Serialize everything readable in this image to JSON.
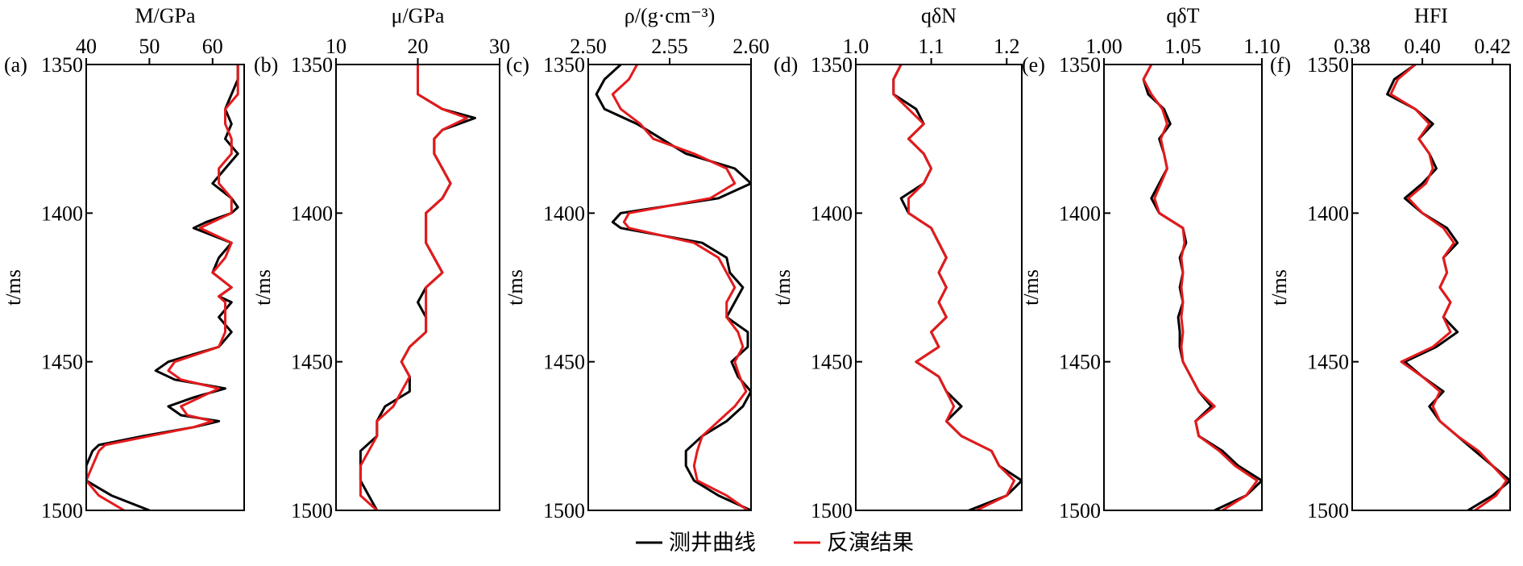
{
  "legend": [
    {
      "label": "测井曲线",
      "color": "#000000"
    },
    {
      "label": "反演结果",
      "color": "#e41a1c"
    }
  ],
  "y_axis": {
    "label": "t/ms",
    "range": [
      1350,
      1500
    ],
    "ticks": [
      1350,
      1400,
      1450,
      1500
    ]
  },
  "chart_data": [
    {
      "type": "line",
      "panel": "(a)",
      "title": "M/GPa",
      "xlim": [
        40,
        65
      ],
      "x_ticks": [
        40,
        50,
        60
      ],
      "y_reversed": true,
      "series": [
        {
          "name": "测井曲线",
          "color": "#000000",
          "t": [
            1350,
            1355,
            1360,
            1365,
            1370,
            1375,
            1380,
            1385,
            1390,
            1395,
            1398,
            1400,
            1403,
            1405,
            1410,
            1415,
            1420,
            1425,
            1428,
            1430,
            1435,
            1440,
            1445,
            1450,
            1453,
            1456,
            1459,
            1462,
            1465,
            1468,
            1470,
            1472,
            1475,
            1478,
            1480,
            1485,
            1490,
            1495,
            1500
          ],
          "values": [
            64,
            64,
            63,
            62,
            63,
            62,
            64,
            62,
            60,
            63,
            64,
            63,
            59,
            57,
            63,
            61,
            60,
            63,
            61,
            63,
            61,
            63,
            61,
            53,
            51,
            54,
            62,
            57,
            53,
            55,
            61,
            57,
            49,
            42,
            41,
            40,
            40,
            44,
            50
          ]
        },
        {
          "name": "反演结果",
          "color": "#e41a1c",
          "t": [
            1350,
            1355,
            1360,
            1365,
            1370,
            1375,
            1380,
            1385,
            1390,
            1395,
            1398,
            1400,
            1403,
            1405,
            1410,
            1415,
            1420,
            1425,
            1428,
            1430,
            1435,
            1440,
            1445,
            1450,
            1453,
            1456,
            1459,
            1462,
            1465,
            1468,
            1470,
            1472,
            1475,
            1478,
            1480,
            1485,
            1490,
            1495,
            1500
          ],
          "values": [
            64,
            64,
            64,
            62,
            62,
            63,
            63,
            61,
            61,
            63,
            63,
            63,
            60,
            58,
            63,
            62,
            60,
            63,
            61,
            62,
            62,
            62,
            61,
            54,
            53,
            55,
            61,
            58,
            55,
            56,
            60,
            57,
            50,
            43,
            42,
            41,
            40,
            42,
            46
          ]
        }
      ]
    },
    {
      "type": "line",
      "panel": "(b)",
      "title": "μ/GPa",
      "xlim": [
        10,
        30
      ],
      "x_ticks": [
        10,
        20,
        30
      ],
      "y_reversed": true,
      "series": [
        {
          "name": "测井曲线",
          "color": "#000000",
          "t": [
            1350,
            1355,
            1360,
            1365,
            1368,
            1372,
            1375,
            1380,
            1385,
            1390,
            1395,
            1400,
            1405,
            1410,
            1415,
            1420,
            1425,
            1430,
            1435,
            1440,
            1445,
            1450,
            1455,
            1460,
            1465,
            1470,
            1475,
            1480,
            1485,
            1490,
            1495,
            1500
          ],
          "values": [
            20,
            20,
            20,
            23,
            27,
            23,
            22,
            22,
            23,
            24,
            23,
            21,
            21,
            21,
            22,
            23,
            21,
            20,
            21,
            21,
            19,
            18,
            19,
            19,
            16,
            15,
            15,
            13,
            13,
            13,
            14,
            15
          ]
        },
        {
          "name": "反演结果",
          "color": "#e41a1c",
          "t": [
            1350,
            1355,
            1360,
            1365,
            1368,
            1372,
            1375,
            1380,
            1385,
            1390,
            1395,
            1400,
            1405,
            1410,
            1415,
            1420,
            1425,
            1430,
            1435,
            1440,
            1445,
            1450,
            1455,
            1460,
            1465,
            1470,
            1475,
            1480,
            1485,
            1490,
            1495,
            1500
          ],
          "values": [
            20,
            20,
            20,
            23,
            26,
            23,
            22,
            22,
            23,
            24,
            23,
            21,
            21,
            21,
            22,
            23,
            21,
            21,
            21,
            21,
            19,
            18,
            19,
            18,
            17,
            15,
            15,
            14,
            13,
            13,
            13,
            15
          ]
        }
      ]
    },
    {
      "type": "line",
      "panel": "(c)",
      "title": "ρ/(g·cm⁻³)",
      "xlim": [
        2.5,
        2.6
      ],
      "x_ticks": [
        2.5,
        2.55,
        2.6
      ],
      "y_reversed": true,
      "series": [
        {
          "name": "测井曲线",
          "color": "#000000",
          "t": [
            1350,
            1355,
            1360,
            1365,
            1370,
            1375,
            1380,
            1385,
            1390,
            1395,
            1400,
            1403,
            1405,
            1410,
            1415,
            1420,
            1425,
            1430,
            1435,
            1440,
            1445,
            1450,
            1455,
            1460,
            1465,
            1470,
            1475,
            1480,
            1485,
            1490,
            1495,
            1500
          ],
          "values": [
            2.52,
            2.51,
            2.505,
            2.51,
            2.53,
            2.545,
            2.56,
            2.59,
            2.6,
            2.58,
            2.52,
            2.515,
            2.52,
            2.57,
            2.585,
            2.587,
            2.595,
            2.59,
            2.585,
            2.598,
            2.598,
            2.588,
            2.592,
            2.6,
            2.595,
            2.585,
            2.57,
            2.56,
            2.56,
            2.565,
            2.58,
            2.6
          ]
        },
        {
          "name": "反演结果",
          "color": "#e41a1c",
          "t": [
            1350,
            1355,
            1360,
            1365,
            1370,
            1375,
            1380,
            1385,
            1390,
            1395,
            1400,
            1403,
            1405,
            1410,
            1415,
            1420,
            1425,
            1430,
            1435,
            1440,
            1445,
            1450,
            1455,
            1460,
            1465,
            1470,
            1475,
            1480,
            1485,
            1490,
            1495,
            1500
          ],
          "values": [
            2.53,
            2.525,
            2.515,
            2.52,
            2.532,
            2.54,
            2.565,
            2.585,
            2.59,
            2.575,
            2.525,
            2.522,
            2.525,
            2.565,
            2.58,
            2.585,
            2.59,
            2.585,
            2.585,
            2.592,
            2.595,
            2.59,
            2.593,
            2.597,
            2.59,
            2.58,
            2.57,
            2.567,
            2.565,
            2.567,
            2.585,
            2.598
          ]
        }
      ]
    },
    {
      "type": "line",
      "panel": "(d)",
      "title": "qδN",
      "xlim": [
        1.0,
        1.22
      ],
      "x_ticks": [
        1.0,
        1.1,
        1.2
      ],
      "y_reversed": true,
      "series": [
        {
          "name": "测井曲线",
          "color": "#000000",
          "t": [
            1350,
            1355,
            1360,
            1365,
            1370,
            1375,
            1380,
            1385,
            1390,
            1395,
            1400,
            1405,
            1410,
            1415,
            1420,
            1425,
            1430,
            1435,
            1440,
            1445,
            1450,
            1455,
            1460,
            1465,
            1470,
            1475,
            1480,
            1485,
            1490,
            1495,
            1500
          ],
          "values": [
            1.06,
            1.05,
            1.05,
            1.08,
            1.09,
            1.07,
            1.09,
            1.1,
            1.09,
            1.06,
            1.07,
            1.1,
            1.11,
            1.12,
            1.11,
            1.12,
            1.11,
            1.12,
            1.1,
            1.11,
            1.08,
            1.11,
            1.12,
            1.14,
            1.12,
            1.14,
            1.18,
            1.19,
            1.22,
            1.2,
            1.15
          ]
        },
        {
          "name": "反演结果",
          "color": "#e41a1c",
          "t": [
            1350,
            1355,
            1360,
            1365,
            1370,
            1375,
            1380,
            1385,
            1390,
            1395,
            1400,
            1405,
            1410,
            1415,
            1420,
            1425,
            1430,
            1435,
            1440,
            1445,
            1450,
            1455,
            1460,
            1465,
            1470,
            1475,
            1480,
            1485,
            1490,
            1495,
            1500
          ],
          "values": [
            1.06,
            1.05,
            1.05,
            1.07,
            1.09,
            1.07,
            1.09,
            1.1,
            1.09,
            1.07,
            1.07,
            1.1,
            1.11,
            1.12,
            1.11,
            1.12,
            1.11,
            1.12,
            1.1,
            1.11,
            1.08,
            1.11,
            1.12,
            1.13,
            1.12,
            1.14,
            1.18,
            1.19,
            1.21,
            1.2,
            1.16
          ]
        }
      ]
    },
    {
      "type": "line",
      "panel": "(e)",
      "title": "qδT",
      "xlim": [
        1.0,
        1.1
      ],
      "x_ticks": [
        1.0,
        1.05,
        1.1
      ],
      "y_reversed": true,
      "series": [
        {
          "name": "测井曲线",
          "color": "#000000",
          "t": [
            1350,
            1355,
            1360,
            1365,
            1370,
            1375,
            1380,
            1385,
            1390,
            1395,
            1400,
            1405,
            1410,
            1415,
            1420,
            1425,
            1430,
            1435,
            1440,
            1445,
            1450,
            1455,
            1460,
            1465,
            1470,
            1475,
            1480,
            1485,
            1490,
            1495,
            1500
          ],
          "values": [
            1.03,
            1.025,
            1.028,
            1.038,
            1.042,
            1.035,
            1.038,
            1.04,
            1.035,
            1.03,
            1.035,
            1.05,
            1.052,
            1.048,
            1.05,
            1.048,
            1.05,
            1.047,
            1.048,
            1.048,
            1.05,
            1.055,
            1.06,
            1.068,
            1.058,
            1.06,
            1.075,
            1.085,
            1.1,
            1.09,
            1.07
          ]
        },
        {
          "name": "反演结果",
          "color": "#e41a1c",
          "t": [
            1350,
            1355,
            1360,
            1365,
            1370,
            1375,
            1380,
            1385,
            1390,
            1395,
            1400,
            1405,
            1410,
            1415,
            1420,
            1425,
            1430,
            1435,
            1440,
            1445,
            1450,
            1455,
            1460,
            1465,
            1470,
            1475,
            1480,
            1485,
            1490,
            1495,
            1500
          ],
          "values": [
            1.03,
            1.025,
            1.03,
            1.037,
            1.04,
            1.036,
            1.038,
            1.04,
            1.036,
            1.032,
            1.035,
            1.05,
            1.051,
            1.049,
            1.05,
            1.049,
            1.05,
            1.049,
            1.05,
            1.049,
            1.05,
            1.055,
            1.06,
            1.07,
            1.058,
            1.06,
            1.073,
            1.083,
            1.097,
            1.09,
            1.075
          ]
        }
      ]
    },
    {
      "type": "line",
      "panel": "(f)",
      "title": "HFI",
      "xlim": [
        0.38,
        0.425
      ],
      "x_ticks": [
        0.38,
        0.4,
        0.42
      ],
      "y_reversed": true,
      "series": [
        {
          "name": "测井曲线",
          "color": "#000000",
          "t": [
            1350,
            1355,
            1360,
            1365,
            1370,
            1375,
            1380,
            1385,
            1390,
            1395,
            1400,
            1405,
            1410,
            1415,
            1420,
            1425,
            1430,
            1435,
            1440,
            1445,
            1450,
            1455,
            1460,
            1465,
            1470,
            1475,
            1480,
            1485,
            1490,
            1495,
            1500
          ],
          "values": [
            0.398,
            0.392,
            0.39,
            0.398,
            0.403,
            0.399,
            0.402,
            0.404,
            0.4,
            0.395,
            0.4,
            0.407,
            0.41,
            0.406,
            0.407,
            0.405,
            0.408,
            0.406,
            0.41,
            0.404,
            0.395,
            0.4,
            0.406,
            0.402,
            0.405,
            0.41,
            0.415,
            0.42,
            0.425,
            0.42,
            0.413
          ]
        },
        {
          "name": "反演结果",
          "color": "#e41a1c",
          "t": [
            1350,
            1355,
            1360,
            1365,
            1370,
            1375,
            1380,
            1385,
            1390,
            1395,
            1400,
            1405,
            1410,
            1415,
            1420,
            1425,
            1430,
            1435,
            1440,
            1445,
            1450,
            1455,
            1460,
            1465,
            1470,
            1475,
            1480,
            1485,
            1490,
            1495,
            1500
          ],
          "values": [
            0.398,
            0.393,
            0.391,
            0.398,
            0.402,
            0.399,
            0.402,
            0.403,
            0.401,
            0.396,
            0.4,
            0.406,
            0.409,
            0.406,
            0.407,
            0.405,
            0.408,
            0.406,
            0.408,
            0.403,
            0.394,
            0.4,
            0.405,
            0.403,
            0.405,
            0.41,
            0.416,
            0.42,
            0.424,
            0.421,
            0.415
          ]
        }
      ]
    }
  ]
}
